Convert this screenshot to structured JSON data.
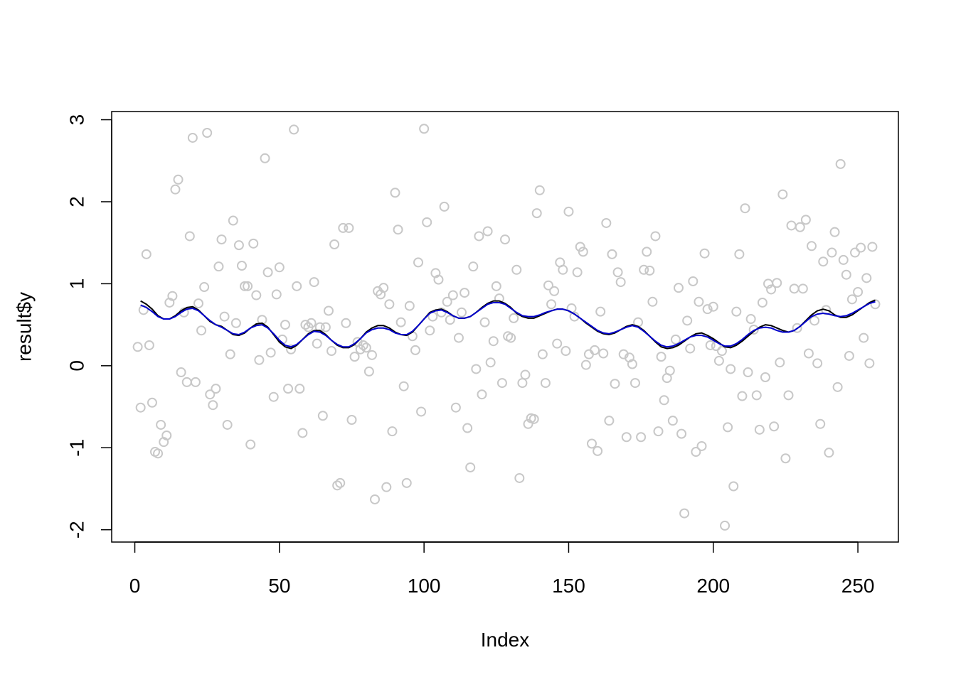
{
  "chart_data": {
    "type": "scatter",
    "xlabel": "Index",
    "ylabel": "result$y",
    "xlim": [
      -8,
      264
    ],
    "ylim": [
      -2.15,
      3.1
    ],
    "x_ticks": [
      0,
      50,
      100,
      150,
      200,
      250
    ],
    "x_tick_labels": [
      "0",
      "50",
      "100",
      "150",
      "200",
      "250"
    ],
    "y_ticks": [
      -2,
      -1,
      0,
      1,
      2,
      3
    ],
    "y_tick_labels": [
      "-2",
      "-1",
      "0",
      "1",
      "2",
      "3"
    ],
    "grid": false,
    "colors": {
      "points": "#c8c8c8",
      "line_black": "#000000",
      "line_blue": "#0000cc",
      "axis": "#000000"
    },
    "series": [
      {
        "type": "scatter",
        "x": [
          1,
          2,
          3,
          4,
          5,
          6,
          7,
          8,
          9,
          10,
          11,
          12,
          13,
          14,
          15,
          16,
          17,
          18,
          19,
          20,
          21,
          22,
          23,
          24,
          25,
          26,
          27,
          28,
          29,
          30,
          31,
          32,
          33,
          34,
          35,
          36,
          37,
          38,
          39,
          40,
          41,
          42,
          43,
          44,
          45,
          46,
          47,
          48,
          49,
          50,
          51,
          52,
          53,
          54,
          55,
          56,
          57,
          58,
          59,
          60,
          61,
          62,
          63,
          64,
          65,
          66,
          67,
          68,
          69,
          70,
          71,
          72,
          73,
          74,
          75,
          76,
          77,
          78,
          79,
          80,
          81,
          82,
          83,
          84,
          85,
          86,
          87,
          88,
          89,
          90,
          91,
          92,
          93,
          94,
          95,
          96,
          97,
          98,
          99,
          100,
          101,
          102,
          103,
          104,
          105,
          106,
          107,
          108,
          109,
          110,
          111,
          112,
          113,
          114,
          115,
          116,
          117,
          118,
          119,
          120,
          121,
          122,
          123,
          124,
          125,
          126,
          127,
          128,
          129,
          130,
          131,
          132,
          133,
          134,
          135,
          136,
          137,
          138,
          139,
          140,
          141,
          142,
          143,
          144,
          145,
          146,
          147,
          148,
          149,
          150,
          151,
          152,
          153,
          154,
          155,
          156,
          157,
          158,
          159,
          160,
          161,
          162,
          163,
          164,
          165,
          166,
          167,
          168,
          169,
          170,
          171,
          172,
          173,
          174,
          175,
          176,
          177,
          178,
          179,
          180,
          181,
          182,
          183,
          184,
          185,
          186,
          187,
          188,
          189,
          190,
          191,
          192,
          193,
          194,
          195,
          196,
          197,
          198,
          199,
          200,
          201,
          202,
          203,
          204,
          205,
          206,
          207,
          208,
          209,
          210,
          211,
          212,
          213,
          214,
          215,
          216,
          217,
          218,
          219,
          220,
          221,
          222,
          223,
          224,
          225,
          226,
          227,
          228,
          229,
          230,
          231,
          232,
          233,
          234,
          235,
          236,
          237,
          238,
          239,
          240,
          241,
          242,
          243,
          244,
          245,
          246,
          247,
          248,
          249,
          250,
          251,
          252,
          253,
          254,
          255,
          256
        ],
        "y": [
          0.23,
          -0.51,
          0.68,
          1.36,
          0.25,
          -0.45,
          -1.05,
          -1.07,
          -0.72,
          -0.93,
          -0.85,
          0.77,
          0.85,
          2.15,
          2.27,
          -0.08,
          0.65,
          -0.2,
          1.58,
          2.78,
          -0.2,
          0.76,
          0.43,
          0.96,
          2.84,
          -0.35,
          -0.48,
          -0.28,
          1.21,
          1.54,
          0.6,
          -0.72,
          0.14,
          1.77,
          0.52,
          1.47,
          1.22,
          0.97,
          0.97,
          -0.96,
          1.49,
          0.86,
          0.07,
          0.56,
          2.53,
          1.14,
          0.16,
          -0.38,
          0.87,
          1.2,
          0.32,
          0.5,
          -0.28,
          0.2,
          2.88,
          0.97,
          -0.28,
          -0.82,
          0.5,
          0.47,
          0.52,
          1.02,
          0.27,
          0.47,
          -0.61,
          0.47,
          0.67,
          0.18,
          1.48,
          -1.46,
          -1.43,
          1.68,
          0.52,
          1.68,
          -0.66,
          0.11,
          0.29,
          0.2,
          0.25,
          0.22,
          -0.07,
          0.13,
          -1.63,
          0.91,
          0.87,
          0.95,
          -1.48,
          0.75,
          -0.8,
          2.11,
          1.66,
          0.53,
          -0.25,
          -1.43,
          0.73,
          0.36,
          0.19,
          1.26,
          -0.56,
          2.89,
          1.75,
          0.43,
          0.6,
          1.13,
          1.05,
          0.65,
          1.94,
          0.78,
          0.56,
          0.86,
          -0.51,
          0.34,
          0.65,
          0.89,
          -0.76,
          -1.24,
          1.21,
          -0.04,
          1.58,
          -0.35,
          0.53,
          1.64,
          0.04,
          0.3,
          0.97,
          0.82,
          -0.21,
          1.54,
          0.36,
          0.34,
          0.58,
          1.17,
          -1.37,
          -0.21,
          -0.11,
          -0.71,
          -0.64,
          -0.65,
          1.86,
          2.14,
          0.14,
          -0.21,
          0.98,
          0.75,
          0.91,
          0.27,
          1.26,
          1.17,
          0.18,
          1.88,
          0.7,
          0.6,
          1.14,
          1.45,
          1.39,
          0.01,
          0.14,
          -0.95,
          0.19,
          -1.04,
          0.66,
          0.15,
          1.74,
          -0.67,
          1.36,
          -0.22,
          1.14,
          1.02,
          0.14,
          -0.87,
          0.1,
          0.02,
          -0.21,
          0.53,
          -0.87,
          1.17,
          1.39,
          1.16,
          0.78,
          1.58,
          -0.8,
          0.11,
          -0.42,
          -0.15,
          -0.06,
          -0.67,
          0.32,
          0.95,
          -0.83,
          -1.8,
          0.55,
          0.21,
          1.03,
          -1.05,
          0.78,
          -0.98,
          1.37,
          0.69,
          0.25,
          0.72,
          0.24,
          0.06,
          0.18,
          -1.95,
          -0.75,
          -0.04,
          -1.47,
          0.66,
          1.36,
          -0.37,
          1.92,
          -0.08,
          0.57,
          0.44,
          -0.36,
          -0.78,
          0.77,
          -0.14,
          1.0,
          0.93,
          -0.74,
          1.01,
          0.04,
          2.09,
          -1.13,
          -0.36,
          1.71,
          0.94,
          0.46,
          1.69,
          0.94,
          1.78,
          0.15,
          1.46,
          0.55,
          0.03,
          -0.71,
          1.27,
          0.68,
          -1.06,
          1.38,
          1.63,
          -0.26,
          2.46,
          1.29,
          1.11,
          0.12,
          0.81,
          1.38,
          0.9,
          1.44,
          0.34,
          1.07,
          0.03,
          1.45,
          0.75
        ]
      },
      {
        "type": "line",
        "color": "black",
        "x": [
          2,
          4,
          6,
          8,
          10,
          12,
          14,
          16,
          18,
          20,
          22,
          24,
          26,
          28,
          30,
          32,
          34,
          36,
          38,
          40,
          42,
          44,
          46,
          48,
          50,
          52,
          54,
          56,
          58,
          60,
          62,
          64,
          66,
          68,
          70,
          72,
          74,
          76,
          78,
          80,
          82,
          84,
          86,
          88,
          90,
          92,
          94,
          96,
          98,
          100,
          102,
          104,
          106,
          108,
          110,
          112,
          114,
          116,
          118,
          120,
          122,
          124,
          126,
          128,
          130,
          132,
          134,
          136,
          138,
          140,
          142,
          144,
          146,
          148,
          150,
          152,
          154,
          156,
          158,
          160,
          162,
          164,
          166,
          168,
          170,
          172,
          174,
          176,
          178,
          180,
          182,
          184,
          186,
          188,
          190,
          192,
          194,
          196,
          198,
          200,
          202,
          204,
          206,
          208,
          210,
          212,
          214,
          216,
          218,
          220,
          222,
          224,
          226,
          228,
          230,
          232,
          234,
          236,
          238,
          240,
          242,
          244,
          246,
          248,
          250,
          252,
          254,
          256
        ],
        "y": [
          0.79,
          0.75,
          0.69,
          0.61,
          0.57,
          0.57,
          0.61,
          0.67,
          0.71,
          0.72,
          0.68,
          0.61,
          0.54,
          0.5,
          0.48,
          0.43,
          0.38,
          0.37,
          0.4,
          0.46,
          0.51,
          0.52,
          0.47,
          0.38,
          0.29,
          0.23,
          0.21,
          0.25,
          0.32,
          0.39,
          0.43,
          0.43,
          0.38,
          0.31,
          0.25,
          0.22,
          0.22,
          0.26,
          0.33,
          0.41,
          0.46,
          0.49,
          0.49,
          0.46,
          0.41,
          0.38,
          0.37,
          0.41,
          0.49,
          0.57,
          0.65,
          0.68,
          0.69,
          0.66,
          0.61,
          0.58,
          0.58,
          0.6,
          0.65,
          0.71,
          0.76,
          0.79,
          0.79,
          0.76,
          0.71,
          0.64,
          0.6,
          0.58,
          0.58,
          0.61,
          0.64,
          0.67,
          0.69,
          0.69,
          0.67,
          0.63,
          0.58,
          0.52,
          0.47,
          0.42,
          0.39,
          0.38,
          0.4,
          0.44,
          0.48,
          0.5,
          0.48,
          0.43,
          0.36,
          0.29,
          0.23,
          0.21,
          0.22,
          0.25,
          0.3,
          0.35,
          0.39,
          0.4,
          0.37,
          0.33,
          0.28,
          0.23,
          0.22,
          0.25,
          0.3,
          0.36,
          0.42,
          0.47,
          0.5,
          0.49,
          0.46,
          0.43,
          0.41,
          0.43,
          0.48,
          0.55,
          0.62,
          0.67,
          0.69,
          0.67,
          0.62,
          0.59,
          0.59,
          0.62,
          0.67,
          0.72,
          0.77,
          0.8
        ]
      },
      {
        "type": "line",
        "color": "blue",
        "x": [
          2,
          4,
          6,
          8,
          10,
          12,
          14,
          16,
          18,
          20,
          22,
          24,
          26,
          28,
          30,
          32,
          34,
          36,
          38,
          40,
          42,
          44,
          46,
          48,
          50,
          52,
          54,
          56,
          58,
          60,
          62,
          64,
          66,
          68,
          70,
          72,
          74,
          76,
          78,
          80,
          82,
          84,
          86,
          88,
          90,
          92,
          94,
          96,
          98,
          100,
          102,
          104,
          106,
          108,
          110,
          112,
          114,
          116,
          118,
          120,
          122,
          124,
          126,
          128,
          130,
          132,
          134,
          136,
          138,
          140,
          142,
          144,
          146,
          148,
          150,
          152,
          154,
          156,
          158,
          160,
          162,
          164,
          166,
          168,
          170,
          172,
          174,
          176,
          178,
          180,
          182,
          184,
          186,
          188,
          190,
          192,
          194,
          196,
          198,
          200,
          202,
          204,
          206,
          208,
          210,
          212,
          214,
          216,
          218,
          220,
          222,
          224,
          226,
          228,
          230,
          232,
          234,
          236,
          238,
          240,
          242,
          244,
          246,
          248,
          250,
          252,
          254,
          256
        ],
        "y": [
          0.74,
          0.71,
          0.66,
          0.6,
          0.57,
          0.57,
          0.6,
          0.65,
          0.69,
          0.7,
          0.67,
          0.61,
          0.55,
          0.5,
          0.47,
          0.43,
          0.39,
          0.38,
          0.41,
          0.46,
          0.49,
          0.5,
          0.46,
          0.39,
          0.31,
          0.25,
          0.23,
          0.26,
          0.32,
          0.38,
          0.42,
          0.41,
          0.37,
          0.31,
          0.26,
          0.23,
          0.23,
          0.27,
          0.33,
          0.4,
          0.44,
          0.46,
          0.46,
          0.44,
          0.4,
          0.38,
          0.38,
          0.42,
          0.49,
          0.57,
          0.64,
          0.67,
          0.68,
          0.65,
          0.61,
          0.58,
          0.58,
          0.6,
          0.65,
          0.7,
          0.75,
          0.77,
          0.77,
          0.75,
          0.7,
          0.65,
          0.61,
          0.6,
          0.6,
          0.62,
          0.65,
          0.67,
          0.69,
          0.69,
          0.67,
          0.63,
          0.58,
          0.53,
          0.48,
          0.43,
          0.4,
          0.39,
          0.41,
          0.44,
          0.47,
          0.49,
          0.47,
          0.42,
          0.36,
          0.3,
          0.25,
          0.23,
          0.24,
          0.27,
          0.31,
          0.35,
          0.37,
          0.37,
          0.35,
          0.31,
          0.27,
          0.24,
          0.24,
          0.27,
          0.32,
          0.38,
          0.43,
          0.46,
          0.47,
          0.46,
          0.43,
          0.41,
          0.41,
          0.43,
          0.48,
          0.54,
          0.6,
          0.63,
          0.64,
          0.63,
          0.61,
          0.6,
          0.61,
          0.64,
          0.68,
          0.72,
          0.76,
          0.78
        ]
      }
    ]
  }
}
